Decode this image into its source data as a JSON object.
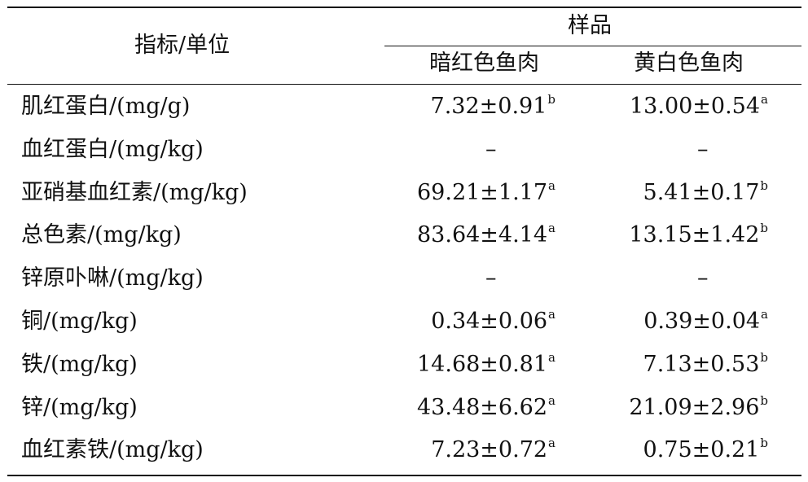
{
  "table": {
    "header": {
      "metric": "指标/单位",
      "group": "样品",
      "col1": "暗红色鱼肉",
      "col2": "黄白色鱼肉"
    },
    "rows": [
      {
        "label": "肌红蛋白/(mg/g)",
        "v1": "7.32±0.91",
        "s1": "b",
        "v2": "13.00±0.54",
        "s2": "a"
      },
      {
        "label": "血红蛋白/(mg/kg)",
        "v1": "–",
        "s1": "",
        "v2": "–",
        "s2": ""
      },
      {
        "label": "亚硝基血红素/(mg/kg)",
        "v1": "69.21±1.17",
        "s1": "a",
        "v2": "5.41±0.17",
        "s2": "b"
      },
      {
        "label": "总色素/(mg/kg)",
        "v1": "83.64±4.14",
        "s1": "a",
        "v2": "13.15±1.42",
        "s2": "b"
      },
      {
        "label": "锌原卟啉/(mg/kg)",
        "v1": "–",
        "s1": "",
        "v2": "–",
        "s2": ""
      },
      {
        "label": "铜/(mg/kg)",
        "v1": "0.34±0.06",
        "s1": "a",
        "v2": "0.39±0.04",
        "s2": "a"
      },
      {
        "label": "铁/(mg/kg)",
        "v1": "14.68±0.81",
        "s1": "a",
        "v2": "7.13±0.53",
        "s2": "b"
      },
      {
        "label": "锌/(mg/kg)",
        "v1": "43.48±6.62",
        "s1": "a",
        "v2": "21.09±2.96",
        "s2": "b"
      },
      {
        "label": "血红素铁/(mg/kg)",
        "v1": "7.23±0.72",
        "s1": "a",
        "v2": "0.75±0.21",
        "s2": "b"
      }
    ]
  }
}
